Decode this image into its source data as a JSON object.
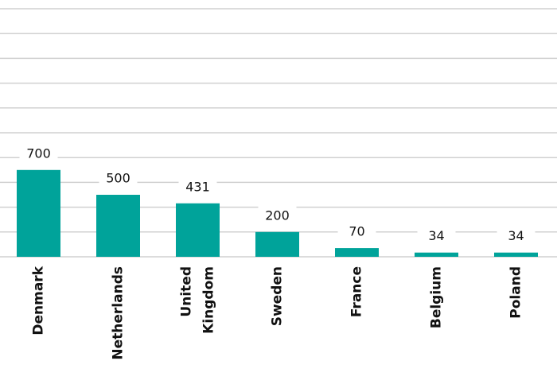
{
  "chart_data": {
    "type": "bar",
    "categories": [
      "Denmark",
      "Netherlands",
      "United Kingdom",
      "Sweden",
      "France",
      "Belgium",
      "Poland"
    ],
    "values": [
      700,
      500,
      431,
      200,
      70,
      34,
      34
    ],
    "color": "#00a39a",
    "ylim": [
      0,
      2000
    ],
    "yticks": [
      0,
      200,
      400,
      600,
      800,
      1000,
      1200,
      1400,
      1600,
      1800,
      2000
    ],
    "grid": true
  }
}
